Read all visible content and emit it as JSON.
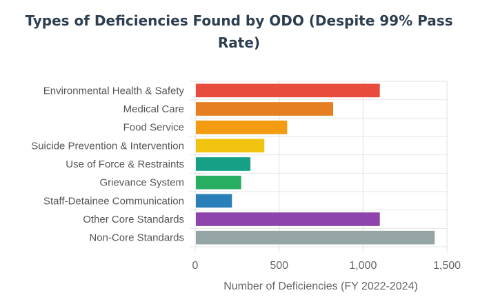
{
  "chart_data": {
    "type": "bar",
    "orientation": "horizontal",
    "title": "Types of Deficiencies Found by ODO (Despite 99% Pass Rate)",
    "title_lines": [
      "Types of Deficiencies Found by ODO (Despite 99% Pass",
      "Rate)"
    ],
    "xlabel": "Number of Deficiencies (FY 2022-2024)",
    "ylabel": "",
    "xlim": [
      0,
      1500
    ],
    "xticks": [
      0,
      500,
      1000,
      1500
    ],
    "xtick_labels": [
      "0",
      "500",
      "1,000",
      "1,500"
    ],
    "grid": true,
    "categories": [
      "Environmental Health & Safety",
      "Medical Care",
      "Food Service",
      "Suicide Prevention & Intervention",
      "Use of Force & Restraints",
      "Grievance System",
      "Staff-Detainee Communication",
      "Other Core Standards",
      "Non-Core Standards"
    ],
    "values": [
      1100,
      822,
      548,
      412,
      329,
      274,
      219,
      1100,
      1427
    ],
    "colors": [
      "#e74c3c",
      "#e67e22",
      "#f39c12",
      "#f1c40f",
      "#16a085",
      "#27ae60",
      "#2980b9",
      "#8e44ad",
      "#95a5a6"
    ]
  }
}
